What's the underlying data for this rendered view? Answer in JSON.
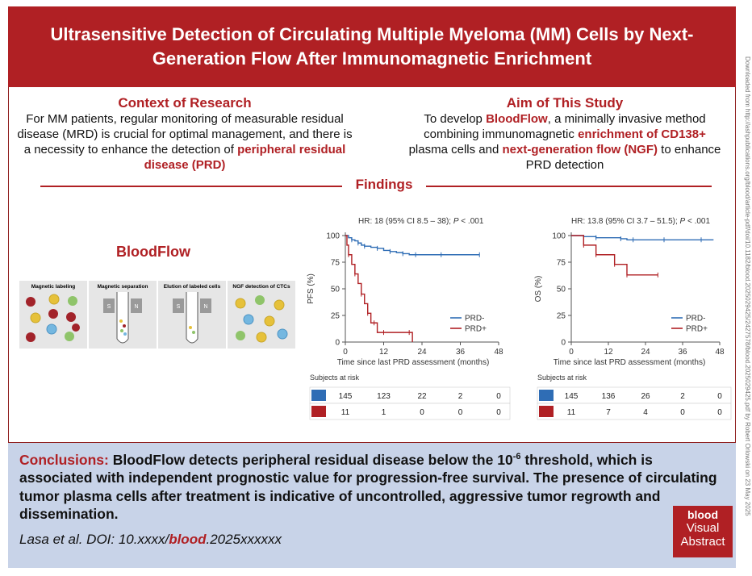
{
  "header": {
    "title": "Ultrasensitive Detection of Circulating Multiple Myeloma (MM) Cells by Next-Generation Flow After Immunomagnetic Enrichment"
  },
  "side_note": "Downloaded from http://ashpublications.org/blood/article-pdf/doi/10.1182/blood.2025029425/2427578/blood.2025029425.pdf by Robert Orlowski on 23 May 2025",
  "context": {
    "title": "Context of Research",
    "text_plain": "For MM patients, regular monitoring of measurable residual disease (MRD) is crucial for optimal management, and there is a necessity to enhance the detection of ",
    "text_bold": "peripheral residual disease (PRD)"
  },
  "aim": {
    "title": "Aim of This Study",
    "t1": "To develop ",
    "b1": "BloodFlow",
    "t2": ", a minimally invasive method combining immunomagnetic ",
    "b2": "enrichment of CD138+",
    "t3": " plasma cells and ",
    "b3": "next-generation flow (NGF)",
    "t4": " to enhance PRD detection"
  },
  "findings_label": "Findings",
  "bloodflow": {
    "title": "BloodFlow",
    "steps": [
      "Magnetic labeling",
      "Magnetic separation",
      "Elution of labeled cells",
      "NGF detection of CTCs"
    ],
    "magnet_left": "S",
    "magnet_right": "N"
  },
  "charts": {
    "pfs": {
      "hr_text": "HR: 18 (95% CI 8.5 – 38); ",
      "p_text": "P",
      "p_val": " < .001",
      "ylabel": "PFS (%)",
      "xlabel": "Time since last PRD assessment (months)",
      "risk_label": "Subjects at risk",
      "risk_rows": [
        [
          145,
          123,
          22,
          2,
          0
        ],
        [
          11,
          1,
          0,
          0,
          0
        ]
      ]
    },
    "os": {
      "hr_text": "HR: 13.8 (95% CI 3.7 – 51.5); ",
      "p_text": "P",
      "p_val": " < .001",
      "ylabel": "OS (%)",
      "xlabel": "Time since last PRD assessment (months)",
      "risk_label": "Subjects at risk",
      "risk_rows": [
        [
          145,
          136,
          26,
          2,
          0
        ],
        [
          11,
          7,
          4,
          0,
          0
        ]
      ]
    }
  },
  "chart_data": [
    {
      "type": "line",
      "ylabel": "PFS (%)",
      "xlabel": "Time since last PRD assessment (months)",
      "xticks": [
        0,
        12,
        24,
        36,
        48
      ],
      "yticks": [
        0,
        25,
        50,
        75,
        100
      ],
      "xlim": [
        0,
        48
      ],
      "ylim": [
        0,
        100
      ],
      "series": [
        {
          "name": "PRD-",
          "color": "#2f6db5",
          "x": [
            0,
            1,
            2,
            3,
            4,
            5,
            6,
            8,
            10,
            12,
            14,
            16,
            18,
            20,
            22,
            24,
            30,
            36,
            42
          ],
          "y": [
            100,
            98,
            96,
            95,
            93,
            91,
            90,
            89,
            88,
            86,
            85,
            84,
            83,
            82,
            82,
            82,
            82,
            82,
            82
          ]
        },
        {
          "name": "PRD+",
          "color": "#b02024",
          "x": [
            0,
            0.5,
            1,
            2,
            3,
            4,
            5,
            6,
            7,
            8,
            9,
            10,
            12,
            14,
            20,
            21
          ],
          "y": [
            100,
            91,
            82,
            73,
            64,
            55,
            45,
            36,
            27,
            18,
            18,
            9,
            9,
            9,
            9,
            0
          ]
        }
      ]
    },
    {
      "type": "line",
      "ylabel": "OS (%)",
      "xlabel": "Time since last PRD assessment (months)",
      "xticks": [
        0,
        12,
        24,
        36,
        48
      ],
      "yticks": [
        0,
        25,
        50,
        75,
        100
      ],
      "xlim": [
        0,
        48
      ],
      "ylim": [
        0,
        100
      ],
      "series": [
        {
          "name": "PRD-",
          "color": "#2f6db5",
          "x": [
            0,
            4,
            8,
            12,
            16,
            18,
            20,
            24,
            30,
            36,
            42,
            46
          ],
          "y": [
            100,
            99,
            98,
            98,
            97,
            96,
            96,
            96,
            96,
            96,
            96,
            96
          ]
        },
        {
          "name": "PRD+",
          "color": "#b02024",
          "x": [
            0,
            3,
            4,
            7,
            8,
            12,
            14,
            17,
            18,
            24,
            28
          ],
          "y": [
            100,
            100,
            91,
            91,
            82,
            82,
            73,
            73,
            63,
            63,
            63
          ]
        }
      ]
    }
  ],
  "conclusions": {
    "lead": "Conclusions:",
    "t1": " BloodFlow detects peripheral residual disease below the 10",
    "sup": "-6",
    "t2": " threshold, which is associated with independent prognostic value for progression-free survival. The presence of circulating tumor plasma cells after treatment is indicative of uncontrolled, aggressive tumor regrowth and dissemination."
  },
  "citation": {
    "pre": "Lasa et al. DOI: 10.xxxx/",
    "blood": "blood",
    "post": ".2025xxxxxx"
  },
  "logo": {
    "l1": "blood",
    "l2": "Visual",
    "l3": "Abstract"
  },
  "colors": {
    "brand_red": "#b02024",
    "prd_neg": "#2f6db5",
    "prd_pos": "#b02024",
    "conclusion_bg": "#c8d3e8"
  }
}
